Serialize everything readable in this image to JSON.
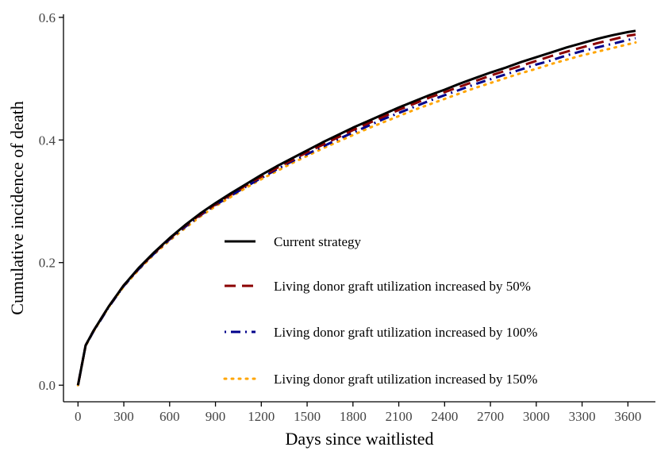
{
  "chart_data": {
    "type": "line",
    "title": "",
    "xlabel": "Days since waitlisted",
    "ylabel": "Cumulative incidence of death",
    "xlim": [
      -95,
      3780
    ],
    "ylim": [
      -0.027,
      0.605
    ],
    "xticks": [
      0,
      300,
      600,
      900,
      1200,
      1500,
      1800,
      2100,
      2400,
      2700,
      3000,
      3300,
      3600
    ],
    "yticks": [
      0.0,
      0.2,
      0.4,
      0.6
    ],
    "xtick_labels": [
      "0",
      "300",
      "600",
      "900",
      "1200",
      "1500",
      "1800",
      "2100",
      "2400",
      "2700",
      "3000",
      "3300",
      "3600"
    ],
    "ytick_labels": [
      "0.0",
      "0.2",
      "0.4",
      "0.6"
    ],
    "grid": false,
    "legend_position": "inside-center",
    "x": [
      0,
      50,
      100,
      200,
      300,
      400,
      500,
      600,
      700,
      800,
      900,
      1000,
      1100,
      1200,
      1300,
      1400,
      1500,
      1600,
      1700,
      1800,
      1900,
      2000,
      2100,
      2200,
      2300,
      2400,
      2500,
      2600,
      2700,
      2800,
      2900,
      3000,
      3100,
      3200,
      3300,
      3400,
      3500,
      3600,
      3650
    ],
    "series": [
      {
        "name": "Current strategy",
        "color": "#000000",
        "dash": "solid",
        "values": [
          0.0,
          0.065,
          0.088,
          0.128,
          0.163,
          0.192,
          0.217,
          0.24,
          0.261,
          0.28,
          0.297,
          0.313,
          0.328,
          0.343,
          0.357,
          0.37,
          0.383,
          0.396,
          0.408,
          0.42,
          0.431,
          0.442,
          0.453,
          0.463,
          0.473,
          0.482,
          0.492,
          0.501,
          0.51,
          0.518,
          0.527,
          0.535,
          0.543,
          0.551,
          0.558,
          0.565,
          0.571,
          0.576,
          0.578
        ]
      },
      {
        "name": "Living donor graft utilization increased by 50%",
        "color": "#8b0000",
        "dash": "dashed",
        "values": [
          0.0,
          0.065,
          0.088,
          0.128,
          0.163,
          0.191,
          0.216,
          0.239,
          0.26,
          0.278,
          0.295,
          0.311,
          0.326,
          0.34,
          0.354,
          0.367,
          0.38,
          0.392,
          0.404,
          0.416,
          0.427,
          0.438,
          0.449,
          0.459,
          0.469,
          0.478,
          0.487,
          0.496,
          0.505,
          0.513,
          0.521,
          0.529,
          0.537,
          0.544,
          0.551,
          0.558,
          0.564,
          0.57,
          0.572
        ]
      },
      {
        "name": "Living donor graft utilization increased by 100%",
        "color": "#00008b",
        "dash": "dotdash",
        "values": [
          0.0,
          0.065,
          0.087,
          0.127,
          0.162,
          0.19,
          0.215,
          0.238,
          0.258,
          0.277,
          0.294,
          0.309,
          0.324,
          0.338,
          0.352,
          0.365,
          0.377,
          0.389,
          0.401,
          0.412,
          0.423,
          0.434,
          0.444,
          0.454,
          0.464,
          0.473,
          0.482,
          0.491,
          0.499,
          0.507,
          0.515,
          0.523,
          0.53,
          0.538,
          0.545,
          0.551,
          0.557,
          0.563,
          0.566
        ]
      },
      {
        "name": "Living donor graft utilization increased by 150%",
        "color": "#ffa500",
        "dash": "dotted",
        "values": [
          0.0,
          0.064,
          0.087,
          0.127,
          0.161,
          0.189,
          0.214,
          0.236,
          0.256,
          0.275,
          0.292,
          0.307,
          0.322,
          0.336,
          0.349,
          0.362,
          0.374,
          0.386,
          0.397,
          0.408,
          0.419,
          0.429,
          0.439,
          0.449,
          0.458,
          0.467,
          0.476,
          0.485,
          0.493,
          0.501,
          0.509,
          0.516,
          0.524,
          0.531,
          0.538,
          0.544,
          0.55,
          0.556,
          0.559
        ]
      }
    ]
  }
}
